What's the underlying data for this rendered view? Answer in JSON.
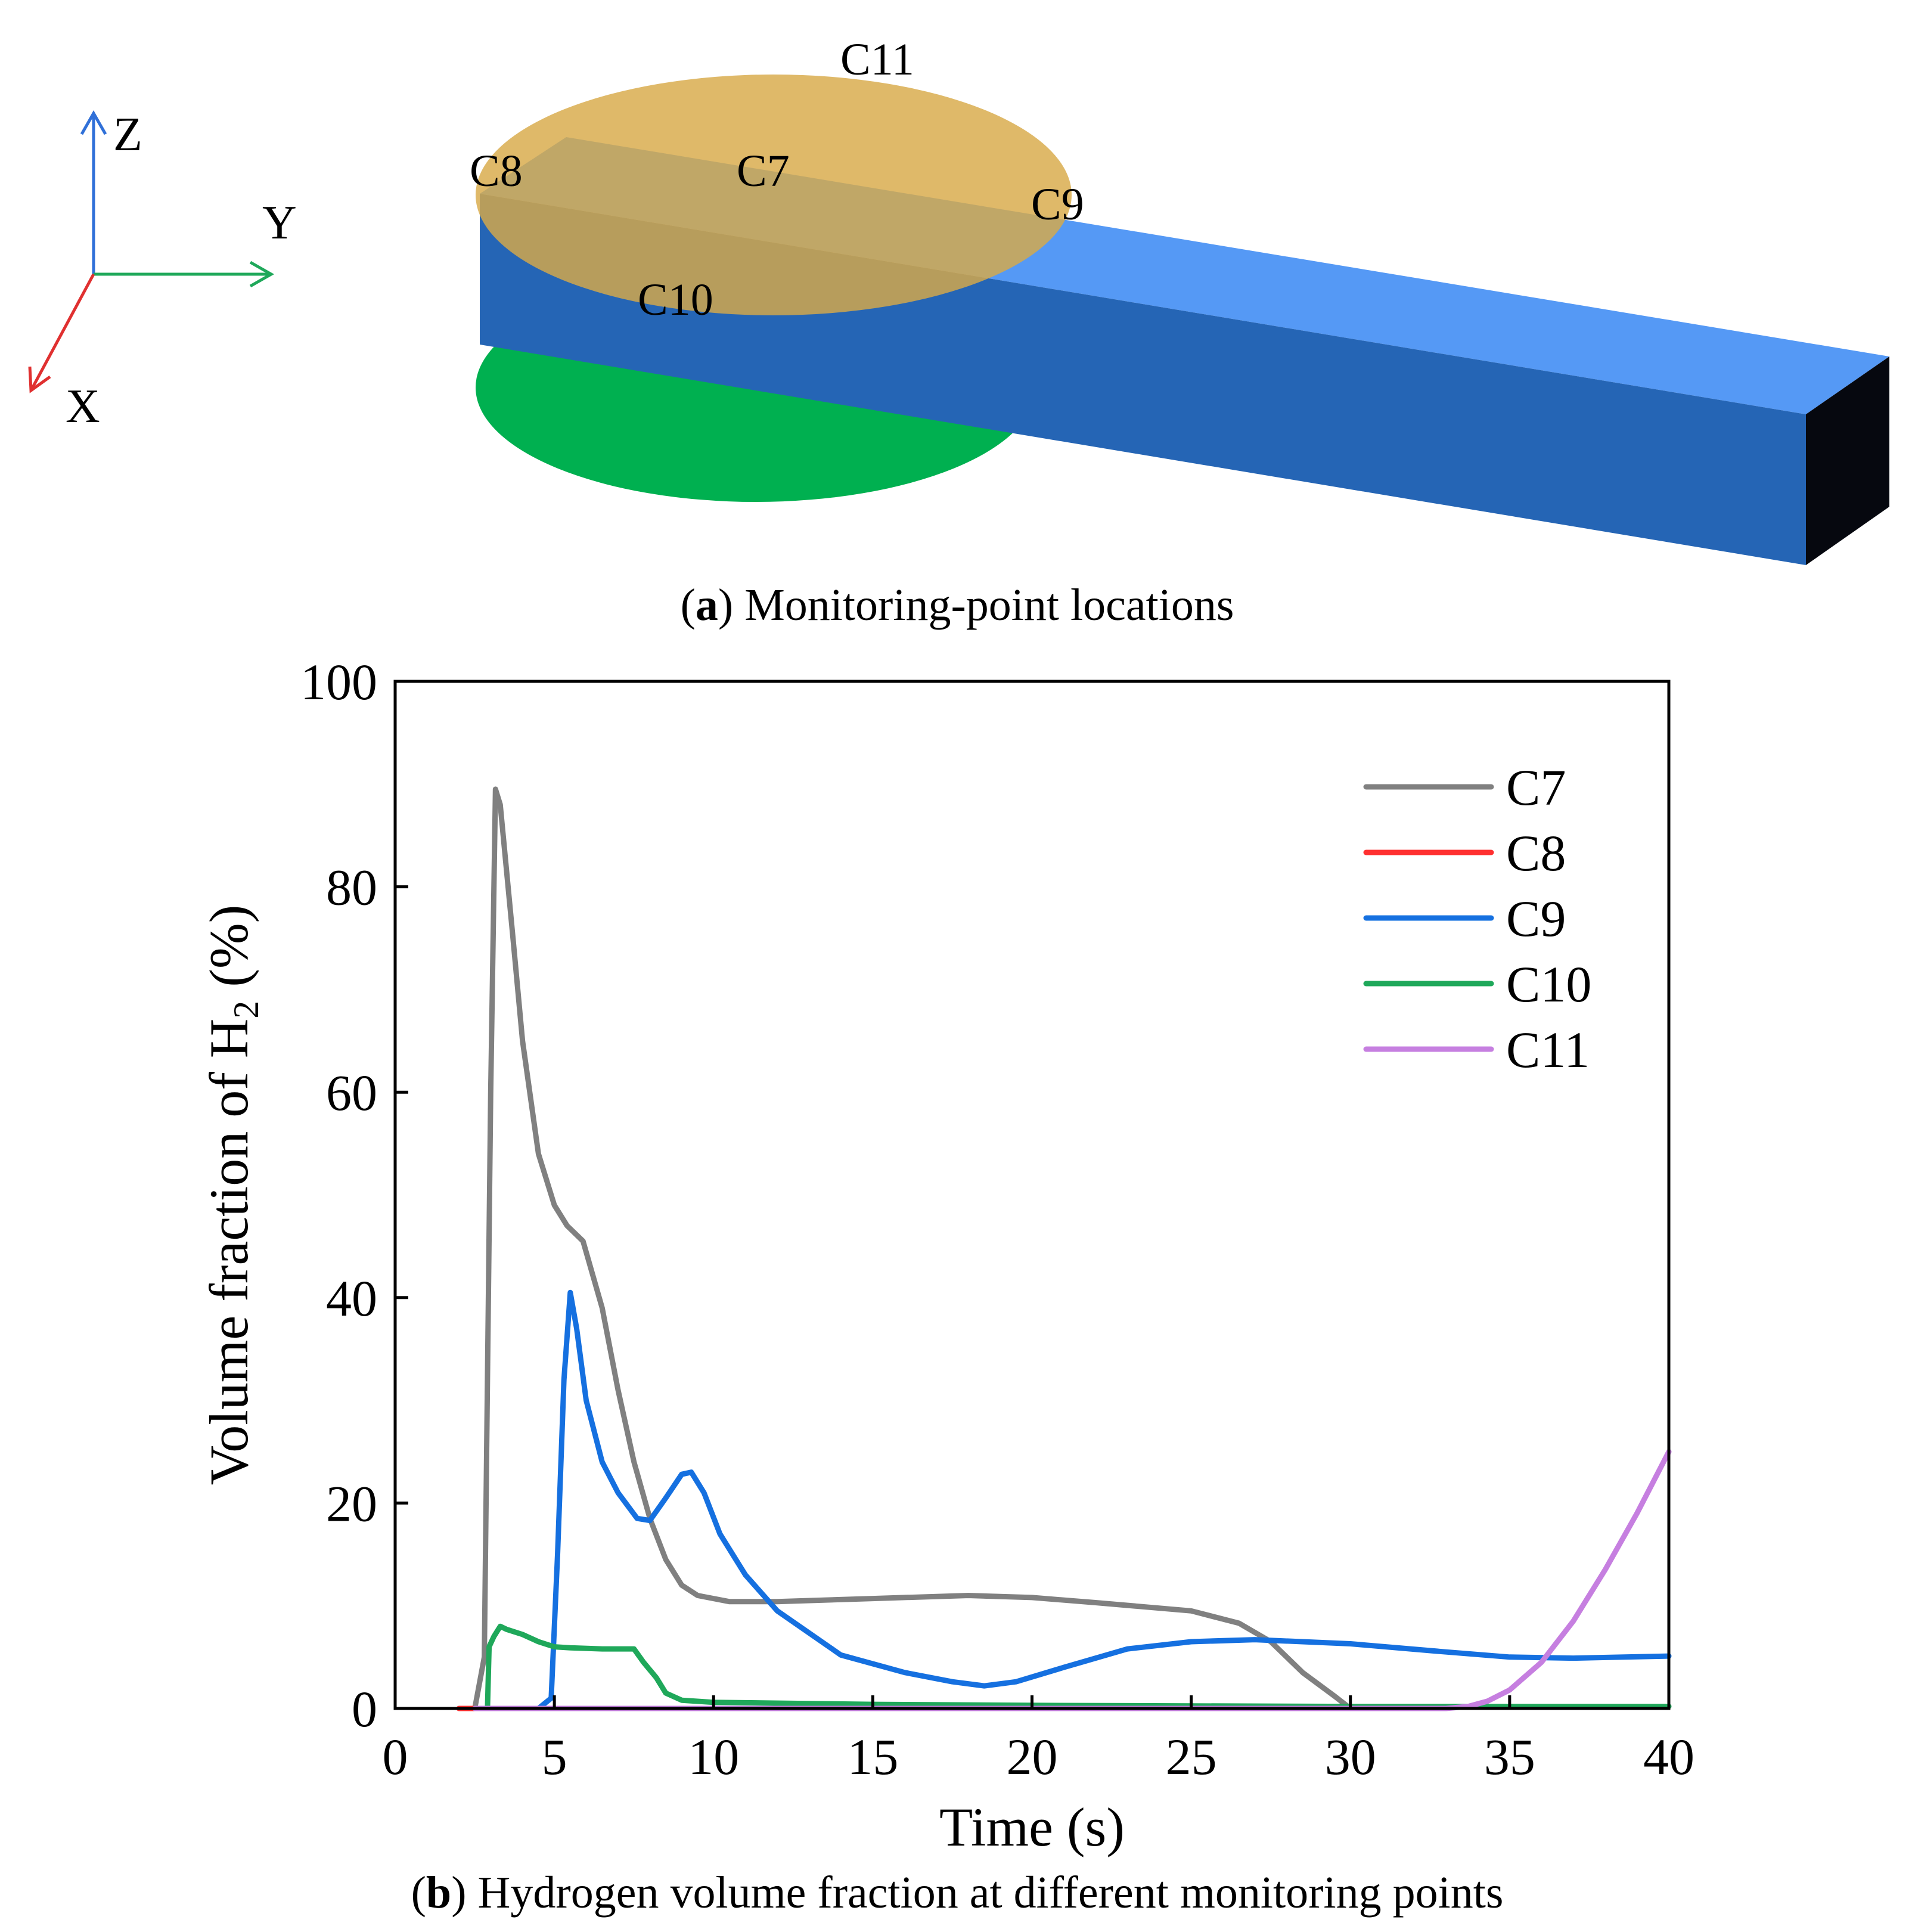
{
  "panel_a": {
    "caption_letter": "a",
    "caption_text": " Monitoring-point locations",
    "axes": {
      "z": "Z",
      "y": "Y",
      "x": "X"
    },
    "points": {
      "c7": "C7",
      "c8": "C8",
      "c9": "C9",
      "c10": "C10",
      "c11": "C11"
    },
    "colors": {
      "top_disc": "#DDB45C",
      "bottom_disc": "#00B050",
      "beam_top": "#5599F5",
      "beam_side": "#2565B5",
      "beam_end": "#06080F"
    }
  },
  "panel_b": {
    "caption_letter": "b",
    "caption_text": " Hydrogen volume fraction at different monitoring points"
  },
  "chart_data": {
    "type": "line",
    "xlabel": "Time (s)",
    "ylabel_main": "Volume fraction of H",
    "ylabel_sub": "2",
    "ylabel_tail": " (%)",
    "xlim": [
      0,
      40
    ],
    "ylim": [
      0,
      100
    ],
    "xticks": [
      0,
      5,
      10,
      15,
      20,
      25,
      30,
      35,
      40
    ],
    "yticks": [
      0,
      20,
      40,
      60,
      80,
      100
    ],
    "grid": false,
    "legend_position": "top-right",
    "series": [
      {
        "name": "C7",
        "color": "#808080",
        "points": [
          [
            2.5,
            0
          ],
          [
            2.8,
            5
          ],
          [
            3.0,
            60
          ],
          [
            3.15,
            89.5
          ],
          [
            3.3,
            88
          ],
          [
            3.7,
            75
          ],
          [
            4.0,
            65
          ],
          [
            4.5,
            54
          ],
          [
            5.0,
            49
          ],
          [
            5.4,
            47
          ],
          [
            5.9,
            45.5
          ],
          [
            6.5,
            39
          ],
          [
            7.0,
            31
          ],
          [
            7.5,
            24
          ],
          [
            8.0,
            18.5
          ],
          [
            8.5,
            14.5
          ],
          [
            9.0,
            12
          ],
          [
            9.5,
            11
          ],
          [
            10.5,
            10.4
          ],
          [
            12,
            10.4
          ],
          [
            15,
            10.7
          ],
          [
            18,
            11
          ],
          [
            20,
            10.8
          ],
          [
            22,
            10.3
          ],
          [
            25,
            9.5
          ],
          [
            26.5,
            8.3
          ],
          [
            27.5,
            6.5
          ],
          [
            28.5,
            3.5
          ],
          [
            29.5,
            1.2
          ],
          [
            30,
            0
          ]
        ]
      },
      {
        "name": "C8",
        "color": "#FF3030",
        "points": [
          [
            2.0,
            0
          ],
          [
            2.6,
            0
          ]
        ]
      },
      {
        "name": "C9",
        "color": "#1570E0",
        "points": [
          [
            4.5,
            0
          ],
          [
            4.9,
            1
          ],
          [
            5.1,
            15
          ],
          [
            5.3,
            32
          ],
          [
            5.5,
            40.5
          ],
          [
            5.7,
            37
          ],
          [
            6.0,
            30
          ],
          [
            6.5,
            24
          ],
          [
            7.0,
            21
          ],
          [
            7.6,
            18.5
          ],
          [
            8.0,
            18.3
          ],
          [
            8.5,
            20.5
          ],
          [
            9.0,
            22.8
          ],
          [
            9.3,
            23
          ],
          [
            9.7,
            21
          ],
          [
            10.2,
            17
          ],
          [
            11,
            13
          ],
          [
            12,
            9.5
          ],
          [
            14,
            5.2
          ],
          [
            16,
            3.5
          ],
          [
            17.5,
            2.6
          ],
          [
            18.5,
            2.2
          ],
          [
            19.5,
            2.6
          ],
          [
            21,
            4
          ],
          [
            23,
            5.8
          ],
          [
            25,
            6.5
          ],
          [
            27,
            6.7
          ],
          [
            30,
            6.3
          ],
          [
            33,
            5.5
          ],
          [
            35,
            5.0
          ],
          [
            37,
            4.9
          ],
          [
            40,
            5.1
          ]
        ]
      },
      {
        "name": "C10",
        "color": "#1FA85A",
        "points": [
          [
            2.9,
            0
          ],
          [
            2.95,
            6
          ],
          [
            3.1,
            7
          ],
          [
            3.3,
            8
          ],
          [
            3.5,
            7.7
          ],
          [
            4.0,
            7.2
          ],
          [
            4.5,
            6.5
          ],
          [
            5.0,
            6.0
          ],
          [
            5.5,
            5.9
          ],
          [
            6.5,
            5.8
          ],
          [
            7.5,
            5.8
          ],
          [
            7.8,
            4.5
          ],
          [
            8.2,
            3
          ],
          [
            8.5,
            1.5
          ],
          [
            9.0,
            0.8
          ],
          [
            10,
            0.6
          ],
          [
            15,
            0.4
          ],
          [
            20,
            0.3
          ],
          [
            30,
            0.2
          ],
          [
            40,
            0.2
          ]
        ]
      },
      {
        "name": "C11",
        "color": "#C67FE0",
        "points": [
          [
            2.5,
            0
          ],
          [
            33,
            0
          ],
          [
            33.7,
            0.2
          ],
          [
            34.3,
            0.7
          ],
          [
            35,
            1.8
          ],
          [
            36,
            4.5
          ],
          [
            37,
            8.5
          ],
          [
            38,
            13.5
          ],
          [
            39,
            19
          ],
          [
            40,
            25
          ]
        ]
      }
    ]
  }
}
